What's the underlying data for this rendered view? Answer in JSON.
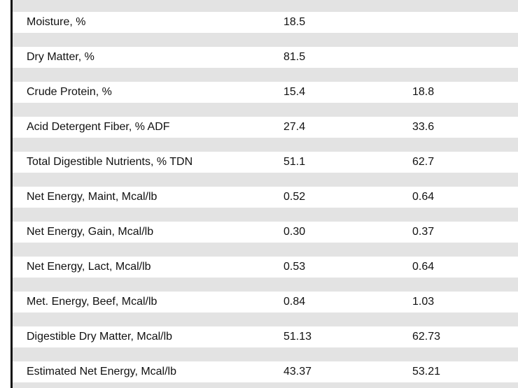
{
  "rows": [
    {
      "label": "Moisture, %",
      "as_fed": "18.5",
      "dry_basis": ""
    },
    {
      "label": "Dry Matter, %",
      "as_fed": "81.5",
      "dry_basis": ""
    },
    {
      "label": "Crude Protein, %",
      "as_fed": "15.4",
      "dry_basis": "18.8"
    },
    {
      "label": "Acid Detergent Fiber, % ADF",
      "as_fed": "27.4",
      "dry_basis": "33.6"
    },
    {
      "label": "Total Digestible Nutrients, % TDN",
      "as_fed": "51.1",
      "dry_basis": "62.7"
    },
    {
      "label": "Net Energy, Maint, Mcal/lb",
      "as_fed": "0.52",
      "dry_basis": "0.64"
    },
    {
      "label": "Net Energy, Gain, Mcal/lb",
      "as_fed": "0.30",
      "dry_basis": "0.37"
    },
    {
      "label": "Net Energy, Lact, Mcal/lb",
      "as_fed": "0.53",
      "dry_basis": "0.64"
    },
    {
      "label": "Met. Energy, Beef, Mcal/lb",
      "as_fed": "0.84",
      "dry_basis": "1.03"
    },
    {
      "label": "Digestible Dry Matter, Mcal/lb",
      "as_fed": "51.13",
      "dry_basis": "62.73"
    },
    {
      "label": "Estimated Net Energy, Mcal/lb",
      "as_fed": "43.37",
      "dry_basis": "53.21"
    }
  ]
}
